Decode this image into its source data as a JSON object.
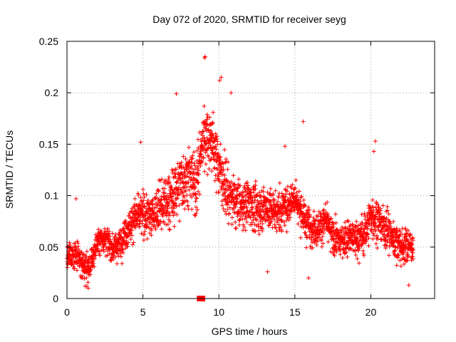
{
  "chart_data": {
    "type": "scatter",
    "title": "Day 072 of 2020, SRMTID for receiver seyg",
    "xlabel": "GPS time / hours",
    "ylabel": "SRMTID / TECUs",
    "xlim": [
      0,
      24.2
    ],
    "ylim": [
      0,
      0.25
    ],
    "x_ticks": [
      0,
      5,
      10,
      15,
      20
    ],
    "x_tick_labels": [
      "0",
      "5",
      "10",
      "15",
      "20"
    ],
    "y_ticks": [
      0,
      0.05,
      0.1,
      0.15,
      0.2,
      0.25
    ],
    "y_tick_labels": [
      "0",
      "0.05",
      "0.1",
      "0.15",
      "0.2",
      "0.25"
    ],
    "grid": true,
    "marker": "+",
    "color": "#ff0000",
    "highlight_interval": {
      "x": [
        8.55,
        9.1
      ],
      "y": 0
    },
    "series": [
      {
        "name": "SRMTID",
        "trend": {
          "x": [
            0,
            0.5,
            1,
            1.5,
            2,
            2.5,
            3,
            3.5,
            4,
            4.5,
            5,
            5.5,
            6,
            6.5,
            7,
            7.5,
            8,
            8.5,
            9,
            9.5,
            10,
            10.5,
            11,
            11.5,
            12,
            12.5,
            13,
            13.5,
            14,
            14.5,
            15,
            15.5,
            16,
            16.5,
            17,
            17.5,
            18,
            18.5,
            19,
            19.5,
            20,
            20.5,
            21,
            21.5,
            22,
            22.5,
            22.8
          ],
          "y": [
            0.04,
            0.045,
            0.033,
            0.03,
            0.055,
            0.06,
            0.048,
            0.055,
            0.068,
            0.08,
            0.082,
            0.08,
            0.088,
            0.092,
            0.1,
            0.115,
            0.12,
            0.11,
            0.16,
            0.155,
            0.13,
            0.105,
            0.095,
            0.09,
            0.095,
            0.085,
            0.09,
            0.085,
            0.085,
            0.09,
            0.1,
            0.08,
            0.07,
            0.068,
            0.075,
            0.06,
            0.055,
            0.06,
            0.058,
            0.06,
            0.08,
            0.075,
            0.068,
            0.058,
            0.05,
            0.052,
            0.05
          ]
        },
        "spread": {
          "x": [
            0,
            3,
            6,
            7,
            9,
            11,
            14,
            18,
            20,
            22.8
          ],
          "y": [
            0.018,
            0.018,
            0.03,
            0.038,
            0.04,
            0.032,
            0.026,
            0.02,
            0.028,
            0.02
          ]
        },
        "points_per_hour": 120,
        "extremes": [
          {
            "x": 9.05,
            "y": 0.234
          },
          {
            "x": 9.1,
            "y": 0.235
          },
          {
            "x": 10.15,
            "y": 0.215
          },
          {
            "x": 10.05,
            "y": 0.212
          },
          {
            "x": 7.2,
            "y": 0.199
          },
          {
            "x": 10.8,
            "y": 0.2
          },
          {
            "x": 4.85,
            "y": 0.152
          },
          {
            "x": 15.55,
            "y": 0.172
          },
          {
            "x": 20.3,
            "y": 0.153
          },
          {
            "x": 20.2,
            "y": 0.143
          },
          {
            "x": 14.35,
            "y": 0.148
          },
          {
            "x": 0.6,
            "y": 0.097
          },
          {
            "x": 1.4,
            "y": 0.01
          },
          {
            "x": 1.2,
            "y": 0.012
          },
          {
            "x": 22.5,
            "y": 0.013
          },
          {
            "x": 13.2,
            "y": 0.026
          },
          {
            "x": 15.9,
            "y": 0.02
          }
        ]
      }
    ]
  }
}
